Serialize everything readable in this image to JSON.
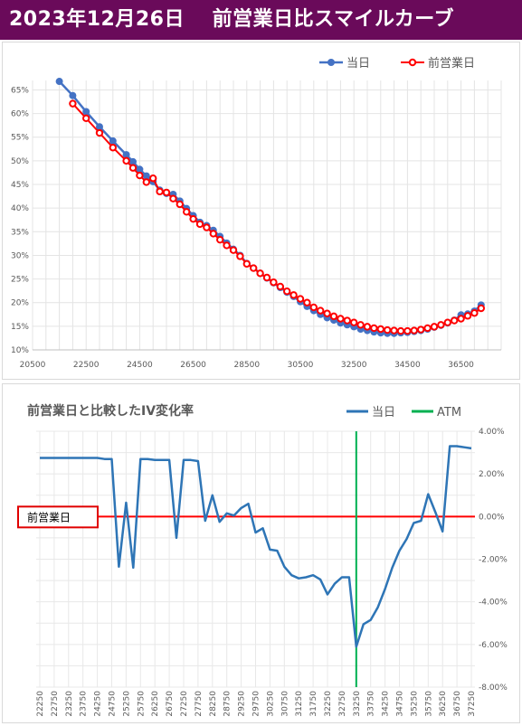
{
  "header": {
    "title": "2023年12月26日　 前営業日比スマイルカーブ"
  },
  "chart_data": [
    {
      "type": "line",
      "title": "",
      "legend_position": "top-right",
      "grid": true,
      "xlim": [
        20500,
        38000
      ],
      "ylim": [
        10,
        67
      ],
      "x_ticks": [
        20500,
        22500,
        24500,
        26500,
        28500,
        30500,
        32500,
        34500,
        36500
      ],
      "y_ticks": [
        10,
        15,
        20,
        25,
        30,
        35,
        40,
        45,
        50,
        55,
        60,
        65
      ],
      "y_tick_labels": [
        "10%",
        "15%",
        "20%",
        "25%",
        "30%",
        "35%",
        "40%",
        "45%",
        "50%",
        "55%",
        "60%",
        "65%"
      ],
      "series": [
        {
          "name": "当日",
          "color": "#4472c4",
          "points": [
            [
              21500,
              66.8
            ],
            [
              22000,
              63.8
            ],
            [
              22500,
              60.4
            ],
            [
              23000,
              57.2
            ],
            [
              23500,
              54.2
            ],
            [
              24000,
              51.3
            ],
            [
              24250,
              49.8
            ],
            [
              24500,
              48.2
            ],
            [
              24750,
              46.8
            ],
            [
              25000,
              45.6
            ],
            [
              25250,
              43.8
            ],
            [
              25500,
              43.1
            ],
            [
              25750,
              42.9
            ],
            [
              26000,
              41.5
            ],
            [
              26250,
              39.9
            ],
            [
              26500,
              38.4
            ],
            [
              26750,
              37.0
            ],
            [
              27000,
              36.3
            ],
            [
              27250,
              35.3
            ],
            [
              27500,
              34.0
            ],
            [
              27750,
              32.6
            ],
            [
              28000,
              31.3
            ],
            [
              28250,
              30.0
            ],
            [
              28500,
              28.3
            ],
            [
              28750,
              27.3
            ],
            [
              29000,
              26.2
            ],
            [
              29250,
              25.2
            ],
            [
              29500,
              24.2
            ],
            [
              29750,
              23.2
            ],
            [
              30000,
              22.2
            ],
            [
              30250,
              21.3
            ],
            [
              30500,
              20.2
            ],
            [
              30750,
              19.2
            ],
            [
              31000,
              18.3
            ],
            [
              31250,
              17.5
            ],
            [
              31500,
              16.8
            ],
            [
              31750,
              16.3
            ],
            [
              32000,
              15.7
            ],
            [
              32250,
              15.3
            ],
            [
              32500,
              14.9
            ],
            [
              32750,
              14.4
            ],
            [
              33000,
              14.1
            ],
            [
              33250,
              13.8
            ],
            [
              33500,
              13.6
            ],
            [
              33750,
              13.5
            ],
            [
              34000,
              13.5
            ],
            [
              34250,
              13.6
            ],
            [
              34500,
              13.7
            ],
            [
              34750,
              13.9
            ],
            [
              35000,
              14.1
            ],
            [
              35250,
              14.4
            ],
            [
              35500,
              14.8
            ],
            [
              35750,
              15.2
            ],
            [
              36000,
              15.7
            ],
            [
              36250,
              16.3
            ],
            [
              36500,
              17.4
            ],
            [
              36750,
              17.6
            ],
            [
              37000,
              18.2
            ],
            [
              37250,
              19.5
            ]
          ]
        },
        {
          "name": "前営業日",
          "color": "#ff0000",
          "points": [
            [
              22000,
              62.1
            ],
            [
              22500,
              59.0
            ],
            [
              23000,
              55.9
            ],
            [
              23500,
              52.8
            ],
            [
              24000,
              50.0
            ],
            [
              24250,
              48.5
            ],
            [
              24500,
              46.9
            ],
            [
              24750,
              45.5
            ],
            [
              25000,
              46.3
            ],
            [
              25250,
              43.5
            ],
            [
              25500,
              43.3
            ],
            [
              25750,
              42.0
            ],
            [
              26000,
              40.8
            ],
            [
              26250,
              39.2
            ],
            [
              26500,
              37.7
            ],
            [
              26750,
              36.6
            ],
            [
              27000,
              35.9
            ],
            [
              27250,
              34.6
            ],
            [
              27500,
              33.3
            ],
            [
              27750,
              32.1
            ],
            [
              28000,
              31.1
            ],
            [
              28250,
              29.8
            ],
            [
              28500,
              28.2
            ],
            [
              28750,
              27.3
            ],
            [
              29000,
              26.2
            ],
            [
              29250,
              25.3
            ],
            [
              29500,
              24.3
            ],
            [
              29750,
              23.4
            ],
            [
              30000,
              22.4
            ],
            [
              30250,
              21.6
            ],
            [
              30500,
              20.8
            ],
            [
              30750,
              20.0
            ],
            [
              31000,
              19.0
            ],
            [
              31250,
              18.3
            ],
            [
              31500,
              17.7
            ],
            [
              31750,
              17.1
            ],
            [
              32000,
              16.6
            ],
            [
              32250,
              16.2
            ],
            [
              32500,
              15.8
            ],
            [
              32750,
              15.3
            ],
            [
              33000,
              14.9
            ],
            [
              33250,
              14.6
            ],
            [
              33500,
              14.4
            ],
            [
              33750,
              14.2
            ],
            [
              34000,
              14.1
            ],
            [
              34250,
              14.0
            ],
            [
              34500,
              14.0
            ],
            [
              34750,
              14.1
            ],
            [
              35000,
              14.3
            ],
            [
              35250,
              14.6
            ],
            [
              35500,
              14.9
            ],
            [
              35750,
              15.3
            ],
            [
              36000,
              15.8
            ],
            [
              36250,
              16.2
            ],
            [
              36500,
              16.6
            ],
            [
              36750,
              17.2
            ],
            [
              37000,
              17.8
            ],
            [
              37250,
              18.8
            ]
          ]
        }
      ]
    },
    {
      "type": "line",
      "title": "前営業日と比較したIV変化率",
      "legend_position": "top-right",
      "grid": true,
      "ylim": [
        -8,
        4
      ],
      "y_ticks": [
        -8,
        -6,
        -4,
        -2,
        0,
        2,
        4
      ],
      "y_tick_labels": [
        "-8.00%",
        "-6.00%",
        "-4.00%",
        "-2.00%",
        "0.00%",
        "2.00%",
        "4.00%"
      ],
      "x_tick_labels": [
        "22250",
        "22750",
        "23250",
        "23750",
        "24250",
        "24750",
        "25250",
        "25750",
        "26250",
        "26750",
        "27250",
        "27750",
        "28250",
        "28750",
        "29250",
        "29750",
        "30250",
        "30750",
        "31250",
        "31750",
        "32250",
        "32750",
        "33250",
        "33750",
        "34250",
        "34750",
        "35250",
        "35750",
        "36250",
        "36750",
        "37250"
      ],
      "x_ticks": [
        22250,
        22750,
        23250,
        23750,
        24250,
        24750,
        25250,
        25750,
        26250,
        26750,
        27250,
        27750,
        28250,
        28750,
        29250,
        29750,
        30250,
        30750,
        31250,
        31750,
        32250,
        32750,
        33250,
        33750,
        34250,
        34750,
        35250,
        35750,
        36250,
        36750,
        37250
      ],
      "xlim": [
        22125,
        37375
      ],
      "atm_strike": 33250,
      "baseline_label": "前営業日",
      "series": [
        {
          "name": "当日",
          "color": "#2e75b6",
          "points": [
            [
              22250,
              2.75
            ],
            [
              22500,
              2.75
            ],
            [
              22750,
              2.75
            ],
            [
              23000,
              2.75
            ],
            [
              23250,
              2.75
            ],
            [
              23500,
              2.75
            ],
            [
              23750,
              2.75
            ],
            [
              24000,
              2.75
            ],
            [
              24250,
              2.75
            ],
            [
              24500,
              2.7
            ],
            [
              24750,
              2.7
            ],
            [
              25000,
              -2.35
            ],
            [
              25250,
              0.65
            ],
            [
              25500,
              -2.4
            ],
            [
              25750,
              2.7
            ],
            [
              26000,
              2.7
            ],
            [
              26250,
              2.65
            ],
            [
              26500,
              2.65
            ],
            [
              26750,
              2.65
            ],
            [
              27000,
              -1.0
            ],
            [
              27250,
              2.65
            ],
            [
              27500,
              2.65
            ],
            [
              27750,
              2.6
            ],
            [
              28000,
              -0.2
            ],
            [
              28250,
              1.0
            ],
            [
              28500,
              -0.25
            ],
            [
              28750,
              0.15
            ],
            [
              29000,
              0.05
            ],
            [
              29250,
              0.4
            ],
            [
              29500,
              0.6
            ],
            [
              29750,
              -0.75
            ],
            [
              30000,
              -0.55
            ],
            [
              30250,
              -1.55
            ],
            [
              30500,
              -1.6
            ],
            [
              30750,
              -2.35
            ],
            [
              31000,
              -2.75
            ],
            [
              31250,
              -2.9
            ],
            [
              31500,
              -2.85
            ],
            [
              31750,
              -2.75
            ],
            [
              32000,
              -2.95
            ],
            [
              32250,
              -3.65
            ],
            [
              32500,
              -3.15
            ],
            [
              32750,
              -2.85
            ],
            [
              33000,
              -2.85
            ],
            [
              33250,
              -6.1
            ],
            [
              33500,
              -5.05
            ],
            [
              33750,
              -4.85
            ],
            [
              34000,
              -4.25
            ],
            [
              34250,
              -3.4
            ],
            [
              34500,
              -2.4
            ],
            [
              34750,
              -1.6
            ],
            [
              35000,
              -1.05
            ],
            [
              35250,
              -0.3
            ],
            [
              35500,
              -0.2
            ],
            [
              35750,
              1.05
            ],
            [
              36000,
              0.2
            ],
            [
              36250,
              -0.7
            ],
            [
              36500,
              3.3
            ],
            [
              36750,
              3.3
            ],
            [
              37000,
              3.25
            ],
            [
              37250,
              3.2
            ]
          ]
        },
        {
          "name": "ATM",
          "color": "#00b050"
        }
      ]
    }
  ]
}
